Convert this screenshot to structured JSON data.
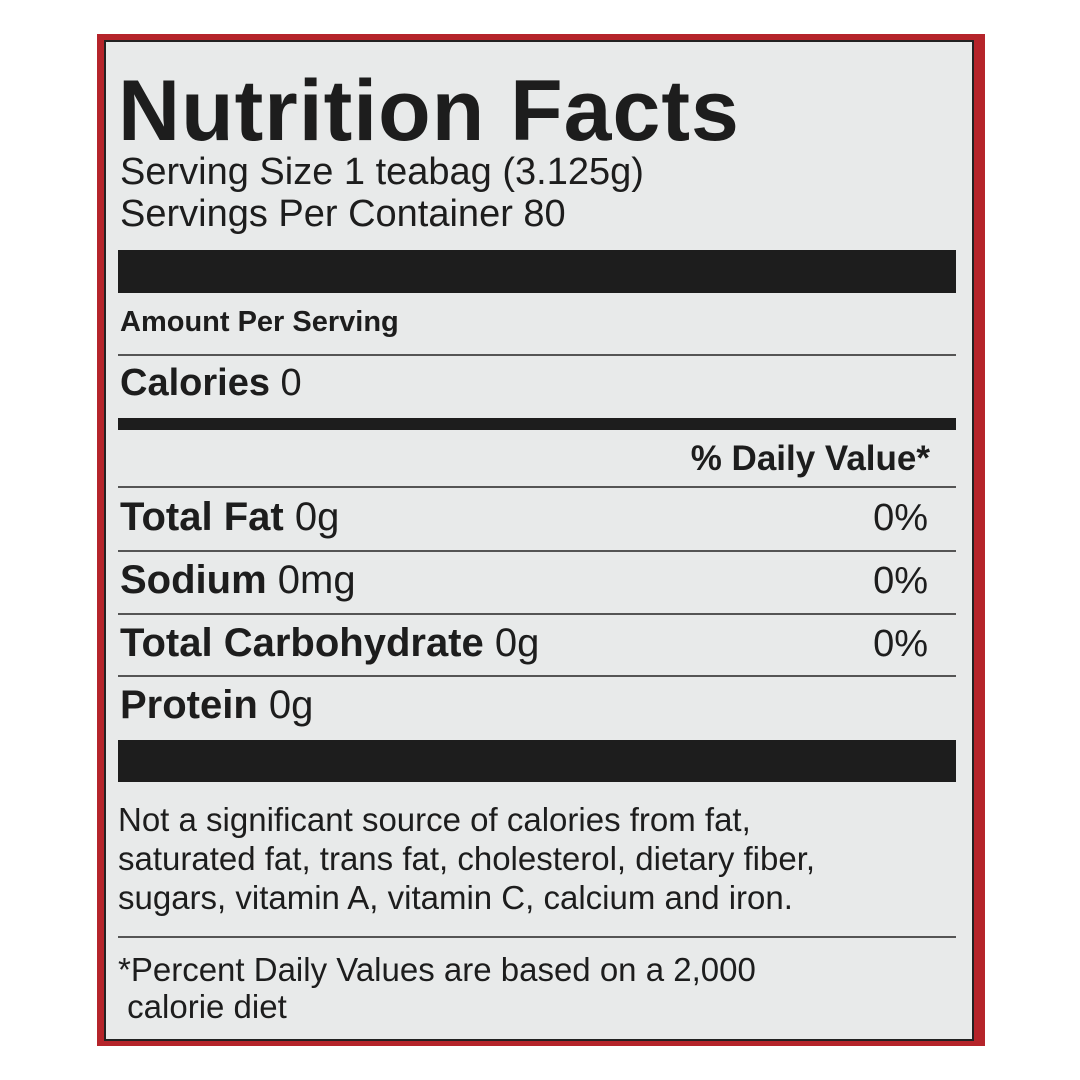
{
  "title": "Nutrition Facts",
  "serving_size": "Serving Size 1 teabag (3.125g)",
  "servings_per_container": "Servings Per Container 80",
  "amount_per_serving": "Amount Per Serving",
  "calories": {
    "label": "Calories",
    "value": "0"
  },
  "daily_value_header": "% Daily Value*",
  "nutrients": [
    {
      "name": "Total Fat",
      "amount": "0g",
      "dv": "0%"
    },
    {
      "name": "Sodium",
      "amount": "0mg",
      "dv": "0%"
    },
    {
      "name": "Total Carbohydrate",
      "amount": "0g",
      "dv": "0%"
    },
    {
      "name": "Protein",
      "amount": "0g",
      "dv": ""
    }
  ],
  "not_significant": [
    "Not a significant source of calories from fat,",
    "saturated fat, trans fat, cholesterol, dietary fiber,",
    "sugars, vitamin A, vitamin C, calcium and iron."
  ],
  "footnote": [
    "*Percent Daily Values are based on a 2,000",
    " calorie diet"
  ],
  "colors": {
    "border": "#b5242a",
    "panel": "#e8eaea",
    "ink": "#1d1d1d"
  }
}
